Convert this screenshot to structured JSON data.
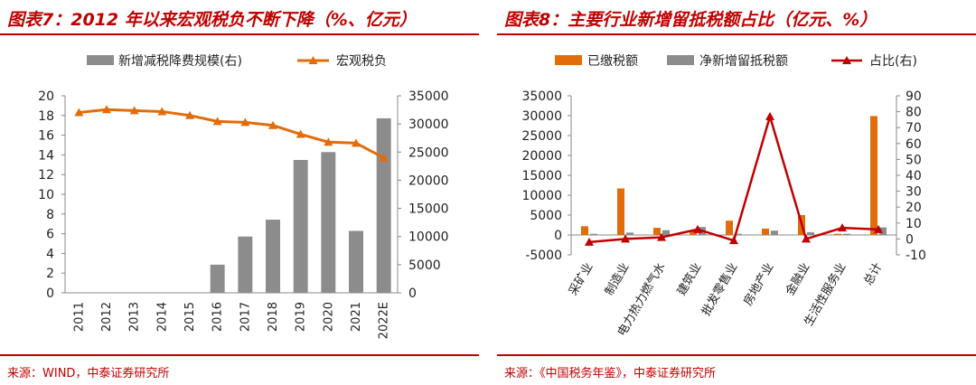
{
  "left_panel": {
    "title": "图表7：2012 年以来宏观税负不断下降（%、亿元）",
    "source": "来源：WIND，中泰证券研究所"
  },
  "right_panel": {
    "title": "图表8：主要行业新增留抵税额占比（亿元、%）",
    "source": "来源：《中国税务年鉴》，中泰证券研究所"
  },
  "colors": {
    "accent": "#c00000",
    "bar_gray": "#8c8c8c",
    "line_orange": "#e36c0a",
    "bar_orange": "#e36c0a",
    "line_red": "#c00000"
  },
  "chart_data": [
    {
      "type": "bar+line",
      "categories": [
        "2011",
        "2012",
        "2013",
        "2014",
        "2015",
        "2016",
        "2017",
        "2018",
        "2019",
        "2020",
        "2021",
        "2022E"
      ],
      "series": [
        {
          "name": "新增减税降费规模(右)",
          "type": "bar",
          "axis": "right",
          "values": [
            null,
            null,
            null,
            null,
            null,
            5000,
            10000,
            13000,
            23600,
            25000,
            11000,
            31000
          ]
        },
        {
          "name": "宏观税负",
          "type": "line",
          "axis": "left",
          "values": [
            18.3,
            18.6,
            18.5,
            18.4,
            18.0,
            17.4,
            17.3,
            17.0,
            16.1,
            15.3,
            15.2,
            13.7
          ]
        }
      ],
      "y_left": {
        "min": 0,
        "max": 20,
        "ticks": [
          0,
          2,
          4,
          6,
          8,
          10,
          12,
          14,
          16,
          18,
          20
        ]
      },
      "y_right": {
        "min": 0,
        "max": 35000,
        "ticks": [
          0,
          5000,
          10000,
          15000,
          20000,
          25000,
          30000,
          35000
        ]
      },
      "legend_position": "top"
    },
    {
      "type": "bar+line",
      "categories": [
        "采矿业",
        "制造业",
        "电力热力燃气水",
        "建筑业",
        "批发零售业",
        "房地产业",
        "金融业",
        "生活性服务业",
        "总计"
      ],
      "series": [
        {
          "name": "已缴税额",
          "type": "bar",
          "axis": "left",
          "values": [
            2200,
            11700,
            1800,
            1200,
            3600,
            1600,
            5000,
            300,
            29900
          ]
        },
        {
          "name": "净新增留抵税额",
          "type": "bar",
          "axis": "left",
          "values": [
            300,
            600,
            1200,
            2000,
            300,
            1100,
            700,
            300,
            1900
          ]
        },
        {
          "name": "占比(右)",
          "type": "line",
          "axis": "right",
          "values": [
            -2,
            0,
            1,
            6,
            -1,
            77,
            0,
            7,
            6
          ]
        }
      ],
      "y_left": {
        "min": -5000,
        "max": 35000,
        "ticks": [
          -5000,
          0,
          5000,
          10000,
          15000,
          20000,
          25000,
          30000,
          35000
        ]
      },
      "y_right": {
        "min": -10,
        "max": 90,
        "ticks": [
          -10,
          0,
          10,
          20,
          30,
          40,
          50,
          60,
          70,
          80,
          90
        ]
      },
      "legend_position": "top"
    }
  ]
}
